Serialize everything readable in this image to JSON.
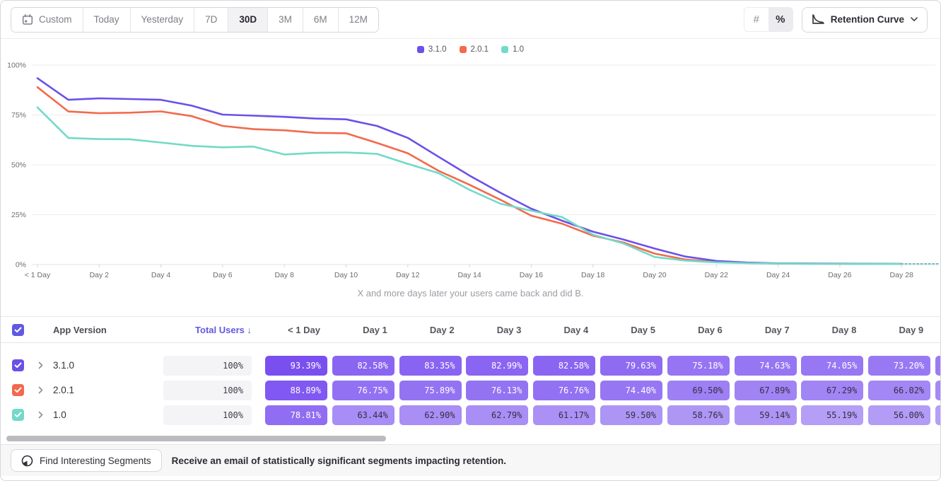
{
  "toolbar": {
    "ranges": [
      {
        "label": "Custom",
        "icon": "calendar",
        "selected": false
      },
      {
        "label": "Today",
        "selected": false
      },
      {
        "label": "Yesterday",
        "selected": false
      },
      {
        "label": "7D",
        "selected": false
      },
      {
        "label": "30D",
        "selected": true
      },
      {
        "label": "3M",
        "selected": false
      },
      {
        "label": "6M",
        "selected": false
      },
      {
        "label": "12M",
        "selected": false
      }
    ],
    "view_toggle": [
      {
        "label": "#",
        "name": "absolute-format",
        "selected": false
      },
      {
        "label": "%",
        "name": "percent-format",
        "selected": true
      }
    ],
    "chart_type": {
      "label": "Retention Curve"
    }
  },
  "chart_data": {
    "type": "line",
    "title": "",
    "xlabel": "",
    "ylabel": "",
    "ylim": [
      0,
      100
    ],
    "grid": "horizontal",
    "legend_position": "top-center",
    "caption": "X and more days later your users came back and did B.",
    "y_tick_labels": [
      "100%",
      "75%",
      "50%",
      "25%",
      "0%"
    ],
    "x_tick_days": [
      0,
      2,
      4,
      6,
      8,
      10,
      12,
      14,
      16,
      18,
      20,
      22,
      24,
      26,
      28
    ],
    "x_tick_labels": [
      "< 1 Day",
      "Day 2",
      "Day 4",
      "Day 6",
      "Day 8",
      "Day 10",
      "Day 12",
      "Day 14",
      "Day 16",
      "Day 18",
      "Day 20",
      "Day 22",
      "Day 24",
      "Day 26",
      "Day 28"
    ],
    "dashed_tail_from_day": 28,
    "series": [
      {
        "name": "3.1.0",
        "color": "#6C50E8",
        "values": [
          93.39,
          82.58,
          83.35,
          82.99,
          82.58,
          79.63,
          75.18,
          74.63,
          74.05,
          73.2,
          72.8,
          69.5,
          63.5,
          54,
          44.6,
          36,
          28,
          22,
          16.5,
          12.5,
          8,
          4,
          1.8,
          1,
          0.6,
          0.5,
          0.45,
          0.4,
          0.35
        ]
      },
      {
        "name": "2.0.1",
        "color": "#F3694C",
        "values": [
          88.89,
          76.75,
          75.89,
          76.13,
          76.76,
          74.4,
          69.5,
          67.89,
          67.29,
          66.02,
          65.8,
          61,
          55.8,
          47,
          40,
          32.5,
          24.5,
          20.5,
          14.5,
          11,
          5.5,
          2.5,
          1.3,
          0.8,
          0.5,
          0.45,
          0.4,
          0.35,
          0.3
        ]
      },
      {
        "name": "1.0",
        "color": "#72DAC8",
        "values": [
          78.81,
          63.44,
          62.9,
          62.79,
          61.17,
          59.5,
          58.76,
          59.14,
          55.19,
          56,
          56.2,
          55.5,
          50.5,
          45.8,
          37.5,
          30.5,
          27,
          23.8,
          15,
          10.5,
          3.8,
          2,
          1.1,
          0.7,
          0.5,
          0.4,
          0.35,
          0.3,
          0.3
        ]
      }
    ]
  },
  "table": {
    "header": {
      "app_version": "App Version",
      "total_users": "Total Users",
      "sort_arrow": "↓",
      "day_columns": [
        "< 1 Day",
        "Day 1",
        "Day 2",
        "Day 3",
        "Day 4",
        "Day 5",
        "Day 6",
        "Day 7",
        "Day 8",
        "Day 9"
      ]
    },
    "rows": [
      {
        "label": "3.1.0",
        "color": "#6C50E8",
        "total": "100%",
        "values": [
          "93.39%",
          "82.58%",
          "83.35%",
          "82.99%",
          "82.58%",
          "79.63%",
          "75.18%",
          "74.63%",
          "74.05%",
          "73.20%"
        ]
      },
      {
        "label": "2.0.1",
        "color": "#F3694C",
        "total": "100%",
        "values": [
          "88.89%",
          "76.75%",
          "75.89%",
          "76.13%",
          "76.76%",
          "74.40%",
          "69.50%",
          "67.89%",
          "67.29%",
          "66.02%"
        ]
      },
      {
        "label": "1.0",
        "color": "#72DAC8",
        "total": "100%",
        "values": [
          "78.81%",
          "63.44%",
          "62.90%",
          "62.79%",
          "61.17%",
          "59.50%",
          "58.76%",
          "59.14%",
          "55.19%",
          "56.00%"
        ]
      }
    ]
  },
  "footer": {
    "button_label": "Find Interesting Segments",
    "message": "Receive an email of statistically significant segments impacting retention."
  },
  "colors": {
    "accent": "#6158E3",
    "pill_dark": "#7A4FF0",
    "pill_light": "#B49EF6",
    "grid": "#ECECF0",
    "axis_text": "#6D6D76"
  }
}
